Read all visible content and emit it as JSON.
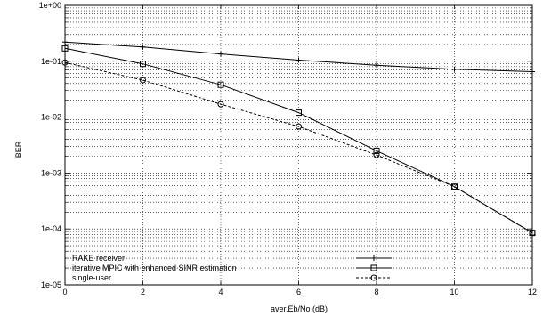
{
  "chart_data": {
    "type": "line",
    "xlabel": "aver.Eb/No (dB)",
    "ylabel": "BER",
    "xlim": [
      0,
      12
    ],
    "ylim": [
      1e-05,
      1
    ],
    "yscale": "log",
    "grid": true,
    "legend_position": "bottom-left",
    "x_ticks": [
      0,
      2,
      4,
      6,
      8,
      10,
      12
    ],
    "x_tick_labels": [
      "0",
      "2",
      "4",
      "6",
      "8",
      "10",
      "12"
    ],
    "y_ticks": [
      1,
      0.1,
      0.01,
      0.001,
      0.0001,
      1e-05
    ],
    "y_tick_labels": [
      "1e+00",
      "1e-01",
      "1e-02",
      "1e-03",
      "1e-04",
      "1e-05"
    ],
    "series": [
      {
        "name": "RAKE receiver",
        "marker": "plus",
        "dash": "solid",
        "x": [
          0,
          2,
          4,
          6,
          8,
          10,
          12
        ],
        "y": [
          0.22,
          0.18,
          0.135,
          0.105,
          0.085,
          0.072,
          0.065
        ]
      },
      {
        "name": "iterative MPIC with enhanced SINR estimation",
        "marker": "square",
        "dash": "solid",
        "x": [
          0,
          2,
          4,
          6,
          8,
          10,
          12
        ],
        "y": [
          0.17,
          0.09,
          0.038,
          0.012,
          0.0025,
          0.00057,
          8.5e-05
        ]
      },
      {
        "name": "single-user",
        "marker": "circle",
        "dash": "dashed",
        "x": [
          0,
          2,
          4,
          6,
          8,
          10,
          12
        ],
        "y": [
          0.095,
          0.046,
          0.017,
          0.0068,
          0.0021,
          0.00057,
          8.5e-05
        ]
      }
    ]
  }
}
